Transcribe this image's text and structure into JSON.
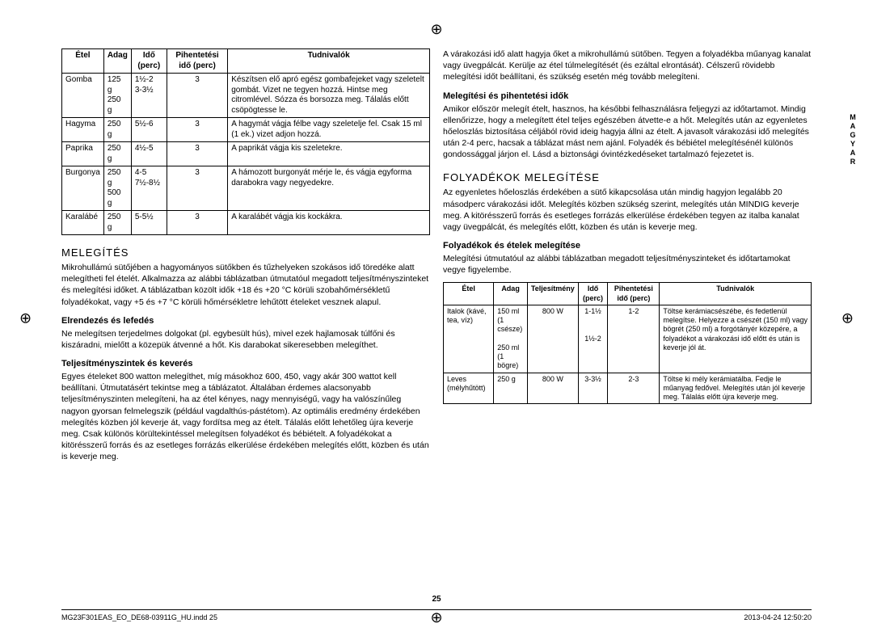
{
  "side_label": "MAGYAR",
  "page_number": "25",
  "footer_left": "MG23F301EAS_EO_DE68-03911G_HU.indd   25",
  "footer_right": "2013-04-24   12:50:20",
  "table1": {
    "headers": [
      "Étel",
      "Adag",
      "Idő (perc)",
      "Pihentetési idő (perc)",
      "Tudnivalók"
    ],
    "rows": [
      [
        "Gomba",
        "125 g\n250 g",
        "1½-2\n3-3½",
        "3",
        "Készítsen elő apró egész gombafejeket vagy szeletelt gombát. Vizet ne tegyen hozzá. Hintse meg citromlével. Sózza és borsozza meg. Tálalás előtt csöpögtesse le."
      ],
      [
        "Hagyma",
        "250 g",
        "5½-6",
        "3",
        "A hagymát vágja félbe vagy szeletelje fel. Csak 15 ml (1 ek.) vizet adjon hozzá."
      ],
      [
        "Paprika",
        "250 g",
        "4½-5",
        "3",
        "A paprikát vágja kis szeletekre."
      ],
      [
        "Burgonya",
        "250 g\n500 g",
        "4-5\n7½-8½",
        "3",
        "A hámozott burgonyát mérje le, és vágja egyforma darabokra vagy negyedekre."
      ],
      [
        "Karalábé",
        "250 g",
        "5-5½",
        "3",
        "A karalábét vágja kis kockákra."
      ]
    ]
  },
  "left": {
    "h_melegites": "MELEGÍTÉS",
    "p_melegites": "Mikrohullámú sütőjében a hagyományos sütőkben és tűzhelyeken szokásos idő töredéke alatt melegítheti fel ételét. Alkalmazza az alábbi táblázatban útmutatóul megadott teljesítményszinteket és melegítési időket. A táblázatban közölt idők +18 és +20 °C körüli szobahőmérsékletű folyadékokat, vagy +5 és +7 °C körüli hőmérsékletre lehűtött ételeket vesznek alapul.",
    "h_elrendezes": "Elrendezés és lefedés",
    "p_elrendezes": "Ne melegítsen terjedelmes dolgokat (pl. egybesült hús), mivel ezek hajlamosak túlfőni és kiszáradni, mielőtt a közepük átvenné a hőt. Kis darabokat sikeresebben melegíthet.",
    "h_teljesitmeny": "Teljesítményszintek és keverés",
    "p_teljesitmeny": "Egyes ételeket 800 watton melegíthet, míg másokhoz 600, 450, vagy akár 300 wattot kell beállítani. Útmutatásért tekintse meg a táblázatot. Általában érdemes alacsonyabb teljesítményszinten melegíteni, ha az étel kényes, nagy mennyiségű, vagy ha valószínűleg nagyon gyorsan felmelegszik (például vagdalthús-pástétom). Az optimális eredmény érdekében melegítés közben jól keverje át, vagy fordítsa meg az ételt. Tálalás előtt lehetőleg újra keverje meg. Csak különös körültekintéssel melegítsen folyadékot és bébiételt. A folyadékokat a kitörésszerű forrás és az esetleges forrázás elkerülése érdekében melegítés előtt, közben és után is keverje meg."
  },
  "right": {
    "p_varakozasi": "A várakozási idő alatt hagyja őket a mikrohullámú sütőben. Tegyen a folyadékba műanyag kanalat vagy üvegpálcát. Kerülje az étel túlmelegítését (és ezáltal elrontását). Célszerű rövidebb melegítési időt beállítani, és szükség esetén még tovább melegíteni.",
    "h_melegpih": "Melegítési és pihentetési idők",
    "p_melegpih": "Amikor először melegít ételt, hasznos, ha későbbi felhasználásra feljegyzi az időtartamot. Mindig ellenőrizze, hogy a melegített étel teljes egészében átvette-e a hőt. Melegítés után az egyenletes hőeloszlás biztosítása céljából rövid ideig hagyja állni az ételt. A javasolt várakozási idő melegítés után 2-4 perc, hacsak a táblázat mást nem ajánl. Folyadék és bébiétel melegítésénél különös gondossággal járjon el. Lásd a biztonsági óvintézkedéseket tartalmazó fejezetet is.",
    "h_folyadekok": "FOLYADÉKOK MELEGÍTÉSE",
    "p_folyadekok": "Az egyenletes hőeloszlás érdekében a sütő kikapcsolása után mindig hagyjon legalább 20 másodperc várakozási időt. Melegítés közben szükség szerint, melegítés után MINDIG keverje meg. A kitörésszerű forrás és esetleges forrázás elkerülése érdekében tegyen az italba kanalat vagy üvegpálcát, és melegítés előtt, közben és után is keverje meg.",
    "h_folyetelek": "Folyadékok és ételek melegítése",
    "p_folyetelek": "Melegítési útmutatóul az alábbi táblázatban megadott teljesítményszinteket és időtartamokat vegye figyelembe."
  },
  "table2": {
    "headers": [
      "Étel",
      "Adag",
      "Teljesítmény",
      "Idő (perc)",
      "Pihentetési idő (perc)",
      "Tudnivalók"
    ],
    "rows": [
      [
        "Italok (kávé, tea, víz)",
        "150 ml\n(1 csésze)\n\n250 ml\n(1 bögre)",
        "800 W",
        "1-1½\n\n\n1½-2",
        "1-2",
        "Töltse kerámiacsészébe, és fedetlenül melegítse. Helyezze a csészét (150 ml) vagy bögrét (250 ml) a forgótányér közepére, a folyadékot a várakozási idő előtt és után is keverje jól át."
      ],
      [
        "Leves (mélyhűtött)",
        "250 g",
        "800 W",
        "3-3½",
        "2-3",
        "Töltse ki mély kerámiatálba. Fedje le műanyag fedővel. Melegítés után jól keverje meg. Tálalás előtt újra keverje meg."
      ]
    ]
  }
}
